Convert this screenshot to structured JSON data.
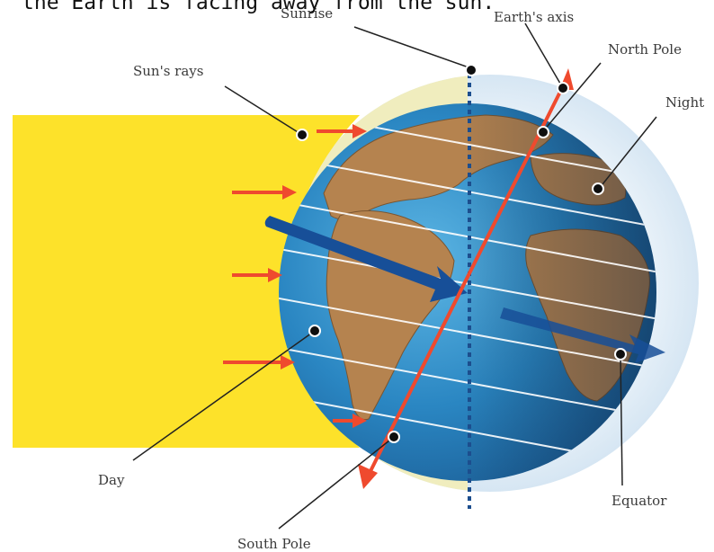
{
  "caption": "the Earth is facing away from the sun.",
  "labels": {
    "sunrise": "Sunrise",
    "earths_axis": "Earth's axis",
    "north_pole": "North Pole",
    "suns_rays": "Sun's rays",
    "night": "Night",
    "day": "Day",
    "equator": "Equator",
    "south_pole": "South Pole"
  },
  "colors": {
    "sunlight": "#fde22a",
    "lit_halo": "#efedbf",
    "shadow_halo": "#dcebf6",
    "ocean": "#2f86bf",
    "land": "#b5834f",
    "axis": "#ef4a2e",
    "rotation_arrow": "#174f98",
    "terminator": "#1c4e8e"
  },
  "icons": {
    "sun_ray_arrow": "right-arrow-icon",
    "rotation_arrow": "curved-arrow-icon",
    "marker": "dot-icon"
  }
}
